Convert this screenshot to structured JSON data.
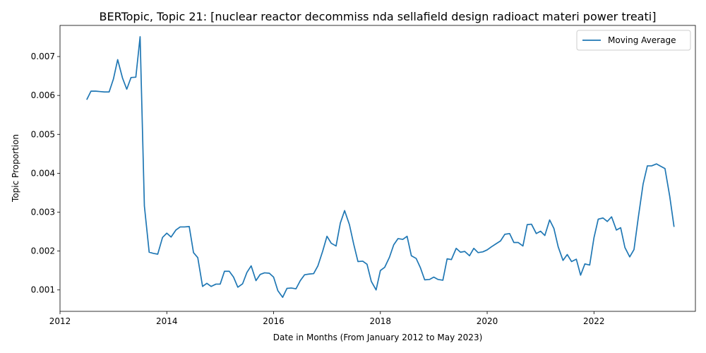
{
  "chart_data": {
    "type": "line",
    "title": "BERTopic, Topic 21: [nuclear reactor decommiss nda sellafield design radioact materi power treati]",
    "xlabel": "Date in Months (From January 2012 to May 2023)",
    "ylabel": "Topic Proportion",
    "xlim": [
      2012.0,
      2023.9
    ],
    "ylim": [
      0.00045,
      0.0078
    ],
    "x_ticks": [
      2012,
      2014,
      2016,
      2018,
      2020,
      2022
    ],
    "x_tick_labels": [
      "2012",
      "2014",
      "2016",
      "2018",
      "2020",
      "2022"
    ],
    "y_ticks": [
      0.001,
      0.002,
      0.003,
      0.004,
      0.005,
      0.006,
      0.007
    ],
    "y_tick_labels": [
      "0.001",
      "0.002",
      "0.003",
      "0.004",
      "0.005",
      "0.006",
      "0.007"
    ],
    "grid": false,
    "legend": {
      "position": "top-right"
    },
    "series": [
      {
        "name": "Moving Average",
        "color": "#1f77b4",
        "points": [
          [
            2012.5,
            0.00589
          ],
          [
            2012.58,
            0.00611
          ],
          [
            2012.67,
            0.00611
          ],
          [
            2012.75,
            0.0061
          ],
          [
            2012.83,
            0.00609
          ],
          [
            2012.92,
            0.00609
          ],
          [
            2013.0,
            0.00642
          ],
          [
            2013.08,
            0.00692
          ],
          [
            2013.17,
            0.00645
          ],
          [
            2013.25,
            0.00616
          ],
          [
            2013.33,
            0.00646
          ],
          [
            2013.42,
            0.00647
          ],
          [
            2013.5,
            0.00751
          ],
          [
            2013.58,
            0.00316
          ],
          [
            2013.67,
            0.00197
          ],
          [
            2013.75,
            0.00194
          ],
          [
            2013.83,
            0.00192
          ],
          [
            2013.92,
            0.00235
          ],
          [
            2014.0,
            0.00246
          ],
          [
            2014.08,
            0.00236
          ],
          [
            2014.17,
            0.00254
          ],
          [
            2014.25,
            0.00262
          ],
          [
            2014.33,
            0.00262
          ],
          [
            2014.42,
            0.00263
          ],
          [
            2014.5,
            0.00196
          ],
          [
            2014.58,
            0.00183
          ],
          [
            2014.67,
            0.00109
          ],
          [
            2014.75,
            0.00117
          ],
          [
            2014.83,
            0.00109
          ],
          [
            2014.92,
            0.00115
          ],
          [
            2015.0,
            0.00115
          ],
          [
            2015.08,
            0.00148
          ],
          [
            2015.17,
            0.00148
          ],
          [
            2015.25,
            0.00133
          ],
          [
            2015.33,
            0.00107
          ],
          [
            2015.42,
            0.00116
          ],
          [
            2015.5,
            0.00145
          ],
          [
            2015.58,
            0.00162
          ],
          [
            2015.67,
            0.00124
          ],
          [
            2015.75,
            0.0014
          ],
          [
            2015.83,
            0.00144
          ],
          [
            2015.92,
            0.00143
          ],
          [
            2016.0,
            0.00133
          ],
          [
            2016.08,
            0.00098
          ],
          [
            2016.17,
            0.00081
          ],
          [
            2016.25,
            0.00104
          ],
          [
            2016.33,
            0.00105
          ],
          [
            2016.42,
            0.00103
          ],
          [
            2016.5,
            0.00124
          ],
          [
            2016.58,
            0.00139
          ],
          [
            2016.67,
            0.00141
          ],
          [
            2016.75,
            0.00142
          ],
          [
            2016.83,
            0.00162
          ],
          [
            2016.92,
            0.002
          ],
          [
            2017.0,
            0.00238
          ],
          [
            2017.08,
            0.0022
          ],
          [
            2017.17,
            0.00213
          ],
          [
            2017.25,
            0.00272
          ],
          [
            2017.33,
            0.00304
          ],
          [
            2017.42,
            0.00268
          ],
          [
            2017.5,
            0.00218
          ],
          [
            2017.58,
            0.00173
          ],
          [
            2017.67,
            0.00174
          ],
          [
            2017.75,
            0.00166
          ],
          [
            2017.83,
            0.00122
          ],
          [
            2017.92,
            0.001
          ],
          [
            2018.0,
            0.0015
          ],
          [
            2018.08,
            0.00158
          ],
          [
            2018.17,
            0.00184
          ],
          [
            2018.25,
            0.00216
          ],
          [
            2018.33,
            0.00232
          ],
          [
            2018.42,
            0.0023
          ],
          [
            2018.5,
            0.00238
          ],
          [
            2018.58,
            0.00188
          ],
          [
            2018.67,
            0.00181
          ],
          [
            2018.75,
            0.00157
          ],
          [
            2018.83,
            0.00126
          ],
          [
            2018.92,
            0.00127
          ],
          [
            2019.0,
            0.00133
          ],
          [
            2019.08,
            0.00127
          ],
          [
            2019.17,
            0.00125
          ],
          [
            2019.25,
            0.0018
          ],
          [
            2019.33,
            0.00178
          ],
          [
            2019.42,
            0.00207
          ],
          [
            2019.5,
            0.00197
          ],
          [
            2019.58,
            0.00199
          ],
          [
            2019.67,
            0.00188
          ],
          [
            2019.75,
            0.00207
          ],
          [
            2019.83,
            0.00196
          ],
          [
            2019.92,
            0.00198
          ],
          [
            2020.0,
            0.00203
          ],
          [
            2020.08,
            0.00211
          ],
          [
            2020.17,
            0.00219
          ],
          [
            2020.25,
            0.00226
          ],
          [
            2020.33,
            0.00243
          ],
          [
            2020.42,
            0.00245
          ],
          [
            2020.5,
            0.00222
          ],
          [
            2020.58,
            0.00222
          ],
          [
            2020.67,
            0.00213
          ],
          [
            2020.75,
            0.00268
          ],
          [
            2020.83,
            0.00269
          ],
          [
            2020.92,
            0.00245
          ],
          [
            2021.0,
            0.00251
          ],
          [
            2021.08,
            0.0024
          ],
          [
            2021.17,
            0.0028
          ],
          [
            2021.25,
            0.00258
          ],
          [
            2021.33,
            0.00211
          ],
          [
            2021.42,
            0.00176
          ],
          [
            2021.5,
            0.00191
          ],
          [
            2021.58,
            0.00173
          ],
          [
            2021.67,
            0.00179
          ],
          [
            2021.75,
            0.00138
          ],
          [
            2021.83,
            0.00167
          ],
          [
            2021.92,
            0.00164
          ],
          [
            2022.0,
            0.00234
          ],
          [
            2022.08,
            0.00282
          ],
          [
            2022.17,
            0.00285
          ],
          [
            2022.25,
            0.00276
          ],
          [
            2022.33,
            0.00288
          ],
          [
            2022.42,
            0.00254
          ],
          [
            2022.5,
            0.0026
          ],
          [
            2022.58,
            0.00209
          ],
          [
            2022.67,
            0.00185
          ],
          [
            2022.75,
            0.00204
          ],
          [
            2022.83,
            0.00286
          ],
          [
            2022.92,
            0.00372
          ],
          [
            2023.0,
            0.00419
          ],
          [
            2023.08,
            0.00419
          ],
          [
            2023.17,
            0.00424
          ],
          [
            2023.25,
            0.00418
          ],
          [
            2023.33,
            0.00412
          ],
          [
            2023.42,
            0.0034
          ],
          [
            2023.5,
            0.00262
          ]
        ]
      }
    ]
  }
}
